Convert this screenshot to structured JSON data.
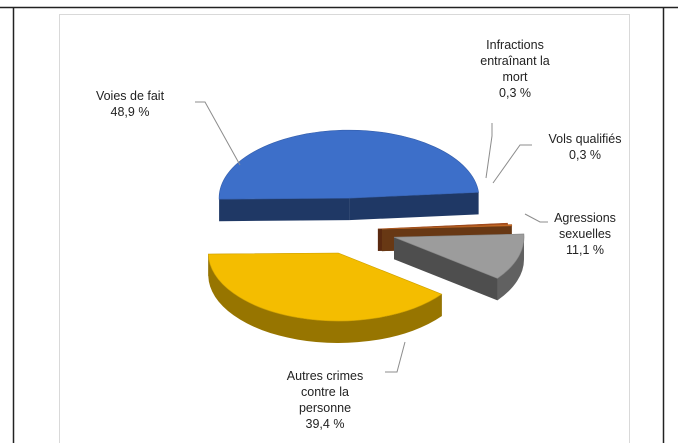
{
  "chart_data": {
    "type": "pie",
    "style": "exploded-3d",
    "grid": false,
    "legend": "none",
    "slices": [
      {
        "name": "Voies de fait",
        "value": 48.9,
        "label_lines": [
          "Voies de fait",
          "48,9 %"
        ],
        "color": "#3d6fc9"
      },
      {
        "name": "Infractions entraînant la mort",
        "value": 0.3,
        "label_lines": [
          "Infractions",
          "entraînant  la",
          "mort",
          "0,3 %"
        ],
        "color": "#b3521f"
      },
      {
        "name": "Vols qualifiés",
        "value": 0.3,
        "label_lines": [
          "Vols qualifiés",
          "0,3 %"
        ],
        "color": "#d07028"
      },
      {
        "name": "Agressions sexuelles",
        "value": 11.1,
        "label_lines": [
          "Agressions",
          "sexuelles",
          "11,1 %"
        ],
        "color": "#9c9c9c"
      },
      {
        "name": "Autres crimes contre la personne",
        "value": 39.4,
        "label_lines": [
          "Autres crimes",
          "contre  la",
          "personne",
          "39,4 %"
        ],
        "color": "#f4bd00"
      }
    ]
  }
}
